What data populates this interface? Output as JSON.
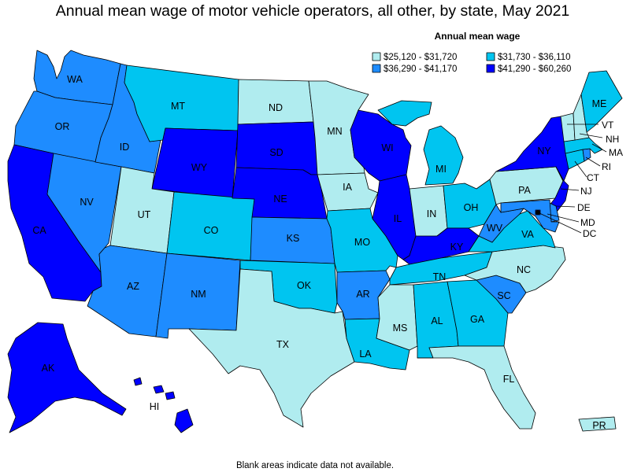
{
  "title": "Annual mean wage of motor vehicle operators, all other, by state, May 2021",
  "legend": {
    "title": "Annual mean wage",
    "items": [
      {
        "label": "$25,120 - $31,720",
        "color": "#b0ecef"
      },
      {
        "label": "$31,730 - $36,110",
        "color": "#00c5f0"
      },
      {
        "label": "$36,290 - $41,170",
        "color": "#1e8cff"
      },
      {
        "label": "$41,290 - $60,260",
        "color": "#0000ff"
      }
    ]
  },
  "footnote": "Blank areas indicate data not available.",
  "states": {
    "WA": {
      "label": "WA",
      "bin": 2
    },
    "OR": {
      "label": "OR",
      "bin": 2
    },
    "CA": {
      "label": "CA",
      "bin": 3
    },
    "NV": {
      "label": "NV",
      "bin": 2
    },
    "ID": {
      "label": "ID",
      "bin": 2
    },
    "MT": {
      "label": "MT",
      "bin": 1
    },
    "WY": {
      "label": "WY",
      "bin": 3
    },
    "UT": {
      "label": "UT",
      "bin": 0
    },
    "CO": {
      "label": "CO",
      "bin": 1
    },
    "AZ": {
      "label": "AZ",
      "bin": 2
    },
    "NM": {
      "label": "NM",
      "bin": 2
    },
    "ND": {
      "label": "ND",
      "bin": 0
    },
    "SD": {
      "label": "SD",
      "bin": 3
    },
    "NE": {
      "label": "NE",
      "bin": 3
    },
    "KS": {
      "label": "KS",
      "bin": 2
    },
    "OK": {
      "label": "OK",
      "bin": 1
    },
    "TX": {
      "label": "TX",
      "bin": 0
    },
    "MN": {
      "label": "MN",
      "bin": 0
    },
    "IA": {
      "label": "IA",
      "bin": 0
    },
    "MO": {
      "label": "MO",
      "bin": 1
    },
    "AR": {
      "label": "AR",
      "bin": 2
    },
    "LA": {
      "label": "LA",
      "bin": 1
    },
    "WI": {
      "label": "WI",
      "bin": 3
    },
    "IL": {
      "label": "IL",
      "bin": 3
    },
    "MI": {
      "label": "MI",
      "bin": 1
    },
    "IN": {
      "label": "IN",
      "bin": 0
    },
    "OH": {
      "label": "OH",
      "bin": 1
    },
    "KY": {
      "label": "KY",
      "bin": 3
    },
    "TN": {
      "label": "TN",
      "bin": 1
    },
    "MS": {
      "label": "MS",
      "bin": 0
    },
    "AL": {
      "label": "AL",
      "bin": 1
    },
    "GA": {
      "label": "GA",
      "bin": 1
    },
    "FL": {
      "label": "FL",
      "bin": 0
    },
    "SC": {
      "label": "SC",
      "bin": 2
    },
    "NC": {
      "label": "NC",
      "bin": 0
    },
    "VA": {
      "label": "VA",
      "bin": 1
    },
    "WV": {
      "label": "WV",
      "bin": 2
    },
    "PA": {
      "label": "PA",
      "bin": 0
    },
    "NY": {
      "label": "NY",
      "bin": 3
    },
    "NJ": {
      "label": "NJ",
      "bin": 3
    },
    "DE": {
      "label": "DE",
      "bin": 2
    },
    "MD": {
      "label": "MD",
      "bin": 2
    },
    "DC": {
      "label": "DC",
      "bin": 3
    },
    "CT": {
      "label": "CT",
      "bin": 1
    },
    "RI": {
      "label": "RI",
      "bin": 2
    },
    "MA": {
      "label": "MA",
      "bin": 1
    },
    "VT": {
      "label": "VT",
      "bin": 0
    },
    "NH": {
      "label": "NH",
      "bin": 0
    },
    "ME": {
      "label": "ME",
      "bin": 1
    },
    "AK": {
      "label": "AK",
      "bin": 3
    },
    "HI": {
      "label": "HI",
      "bin": 3
    },
    "PR": {
      "label": "PR",
      "bin": 0
    }
  }
}
